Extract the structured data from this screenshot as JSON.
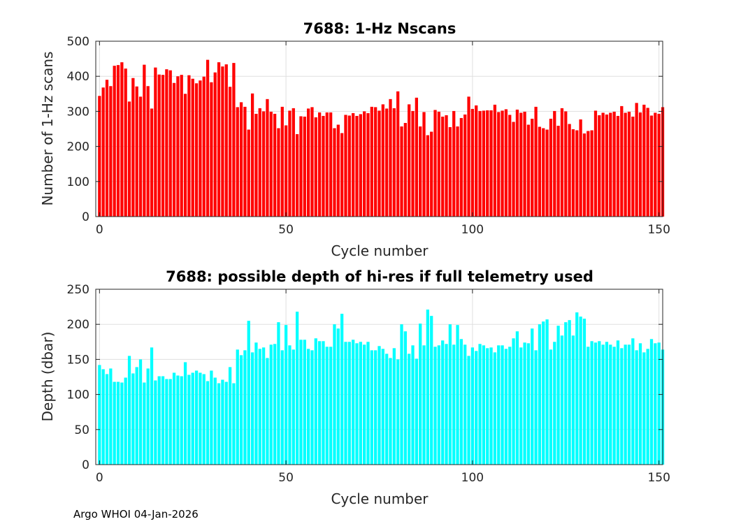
{
  "footer": "Argo WHOI 04-Jan-2026",
  "chart_data": [
    {
      "type": "bar",
      "title": "7688: 1-Hz Nscans",
      "xlabel": "Cycle number",
      "ylabel": "Number of 1-Hz scans",
      "color": "#ff0000",
      "xlim": [
        -1,
        151
      ],
      "ylim": [
        0,
        500
      ],
      "xticks": [
        0,
        50,
        100,
        150
      ],
      "yticks": [
        0,
        100,
        200,
        300,
        400,
        500
      ],
      "grid": true,
      "x_start": 0,
      "values": [
        344,
        368,
        390,
        372,
        430,
        432,
        440,
        422,
        328,
        395,
        371,
        342,
        433,
        372,
        308,
        425,
        405,
        404,
        420,
        417,
        381,
        400,
        404,
        350,
        403,
        393,
        380,
        388,
        399,
        447,
        383,
        411,
        440,
        428,
        434,
        370,
        438,
        312,
        326,
        313,
        248,
        351,
        293,
        309,
        300,
        335,
        299,
        293,
        252,
        313,
        260,
        302,
        309,
        235,
        286,
        285,
        308,
        312,
        283,
        297,
        287,
        297,
        297,
        252,
        262,
        238,
        290,
        288,
        295,
        287,
        292,
        300,
        295,
        313,
        312,
        302,
        320,
        308,
        335,
        309,
        357,
        257,
        267,
        320,
        301,
        339,
        257,
        298,
        232,
        242,
        304,
        299,
        285,
        289,
        255,
        301,
        257,
        281,
        291,
        342,
        307,
        317,
        301,
        302,
        303,
        303,
        319,
        298,
        302,
        306,
        290,
        270,
        305,
        296,
        299,
        262,
        279,
        313,
        256,
        252,
        248,
        279,
        301,
        259,
        309,
        300,
        264,
        249,
        246,
        277,
        237,
        244,
        246,
        302,
        289,
        296,
        291,
        296,
        299,
        287,
        315,
        296,
        299,
        285,
        324,
        297,
        319,
        310,
        288,
        296,
        293,
        312
      ]
    },
    {
      "type": "bar",
      "title": "7688: possible depth of hi-res if full telemetry used",
      "xlabel": "Cycle number",
      "ylabel": "Depth (dbar)",
      "color": "#00ffff",
      "xlim": [
        -1,
        151
      ],
      "ylim": [
        0,
        250
      ],
      "xticks": [
        0,
        50,
        100,
        150
      ],
      "yticks": [
        0,
        50,
        100,
        150,
        200,
        250
      ],
      "grid": true,
      "x_start": 0,
      "values": [
        142,
        136,
        129,
        137,
        118,
        118,
        117,
        124,
        155,
        130,
        139,
        150,
        117,
        137,
        167,
        120,
        126,
        126,
        122,
        122,
        131,
        127,
        126,
        146,
        128,
        131,
        134,
        131,
        129,
        119,
        134,
        124,
        116,
        121,
        118,
        139,
        116,
        164,
        156,
        163,
        205,
        160,
        174,
        165,
        167,
        152,
        171,
        172,
        203,
        163,
        199,
        170,
        164,
        218,
        178,
        178,
        165,
        163,
        180,
        176,
        176,
        168,
        168,
        200,
        194,
        215,
        175,
        175,
        178,
        173,
        175,
        171,
        175,
        163,
        163,
        169,
        165,
        158,
        152,
        166,
        150,
        200,
        190,
        158,
        170,
        151,
        201,
        170,
        221,
        212,
        168,
        170,
        177,
        172,
        200,
        171,
        199,
        179,
        171,
        155,
        167,
        162,
        172,
        170,
        166,
        167,
        160,
        170,
        170,
        165,
        168,
        180,
        190,
        167,
        174,
        173,
        194,
        163,
        200,
        204,
        207,
        164,
        175,
        198,
        184,
        203,
        206,
        184,
        217,
        211,
        208,
        168,
        176,
        174,
        176,
        171,
        175,
        171,
        168,
        177,
        166,
        171,
        171,
        180,
        163,
        173,
        160,
        165,
        179,
        173,
        174,
        164
      ]
    }
  ]
}
